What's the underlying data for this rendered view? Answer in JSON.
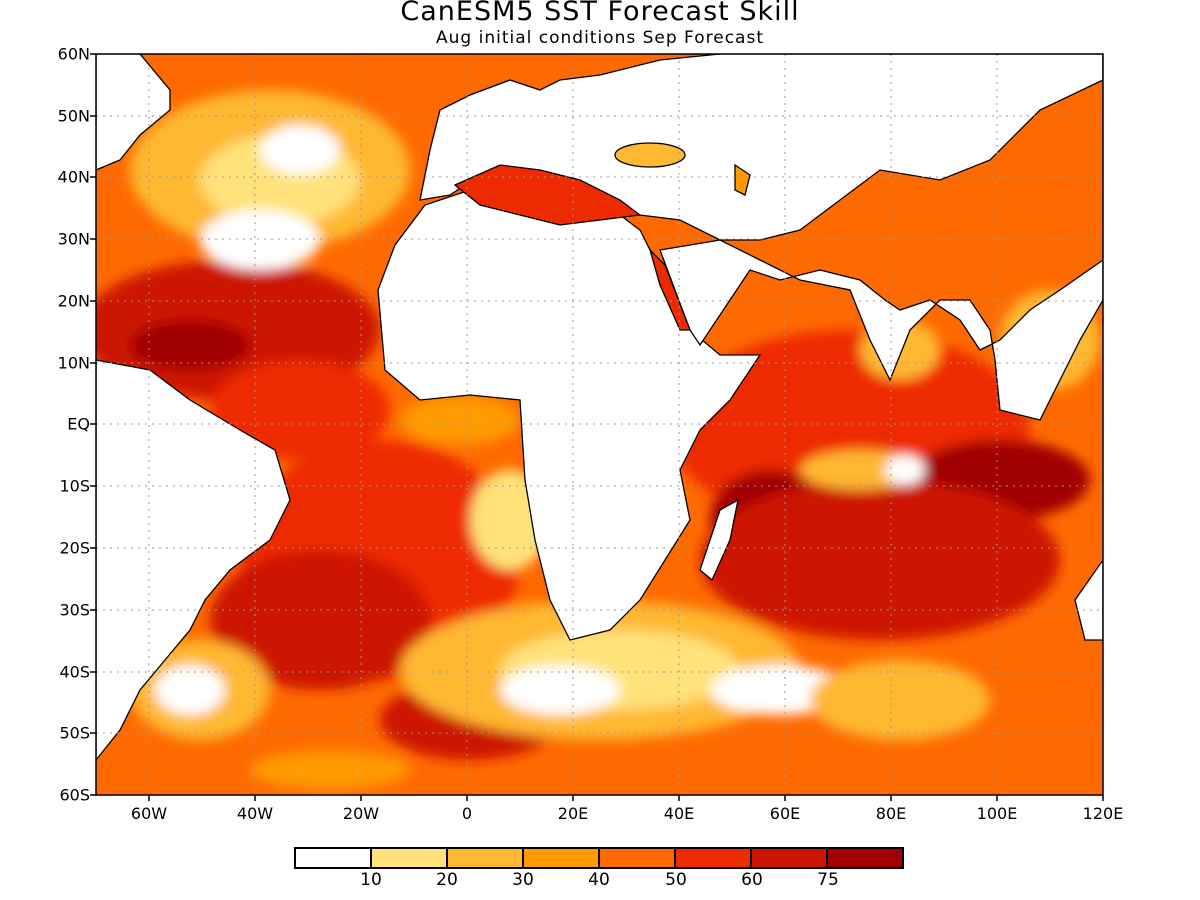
{
  "title": "CanESM5 SST Forecast Skill",
  "subtitle": "Aug initial conditions  Sep Forecast",
  "map": {
    "lon_range": [
      -70,
      120
    ],
    "lat_range": [
      -60,
      60
    ],
    "grid": true,
    "lat_labels": [
      "60N",
      "50N",
      "40N",
      "30N",
      "20N",
      "10N",
      "EQ",
      "10S",
      "20S",
      "30S",
      "40S",
      "50S",
      "60S"
    ],
    "lon_labels": [
      "60W",
      "40W",
      "20W",
      "0",
      "20E",
      "40E",
      "60E",
      "80E",
      "100E",
      "120E"
    ],
    "land_color": "#ffffff",
    "coast_color": "#000000"
  },
  "colorbar": {
    "colors": [
      "#ffffff",
      "#ffe27a",
      "#ffb832",
      "#ff9a00",
      "#ff6a00",
      "#ee2a00",
      "#cc1400",
      "#a00000"
    ],
    "labels": [
      "10",
      "20",
      "30",
      "40",
      "50",
      "60",
      "75"
    ]
  }
}
